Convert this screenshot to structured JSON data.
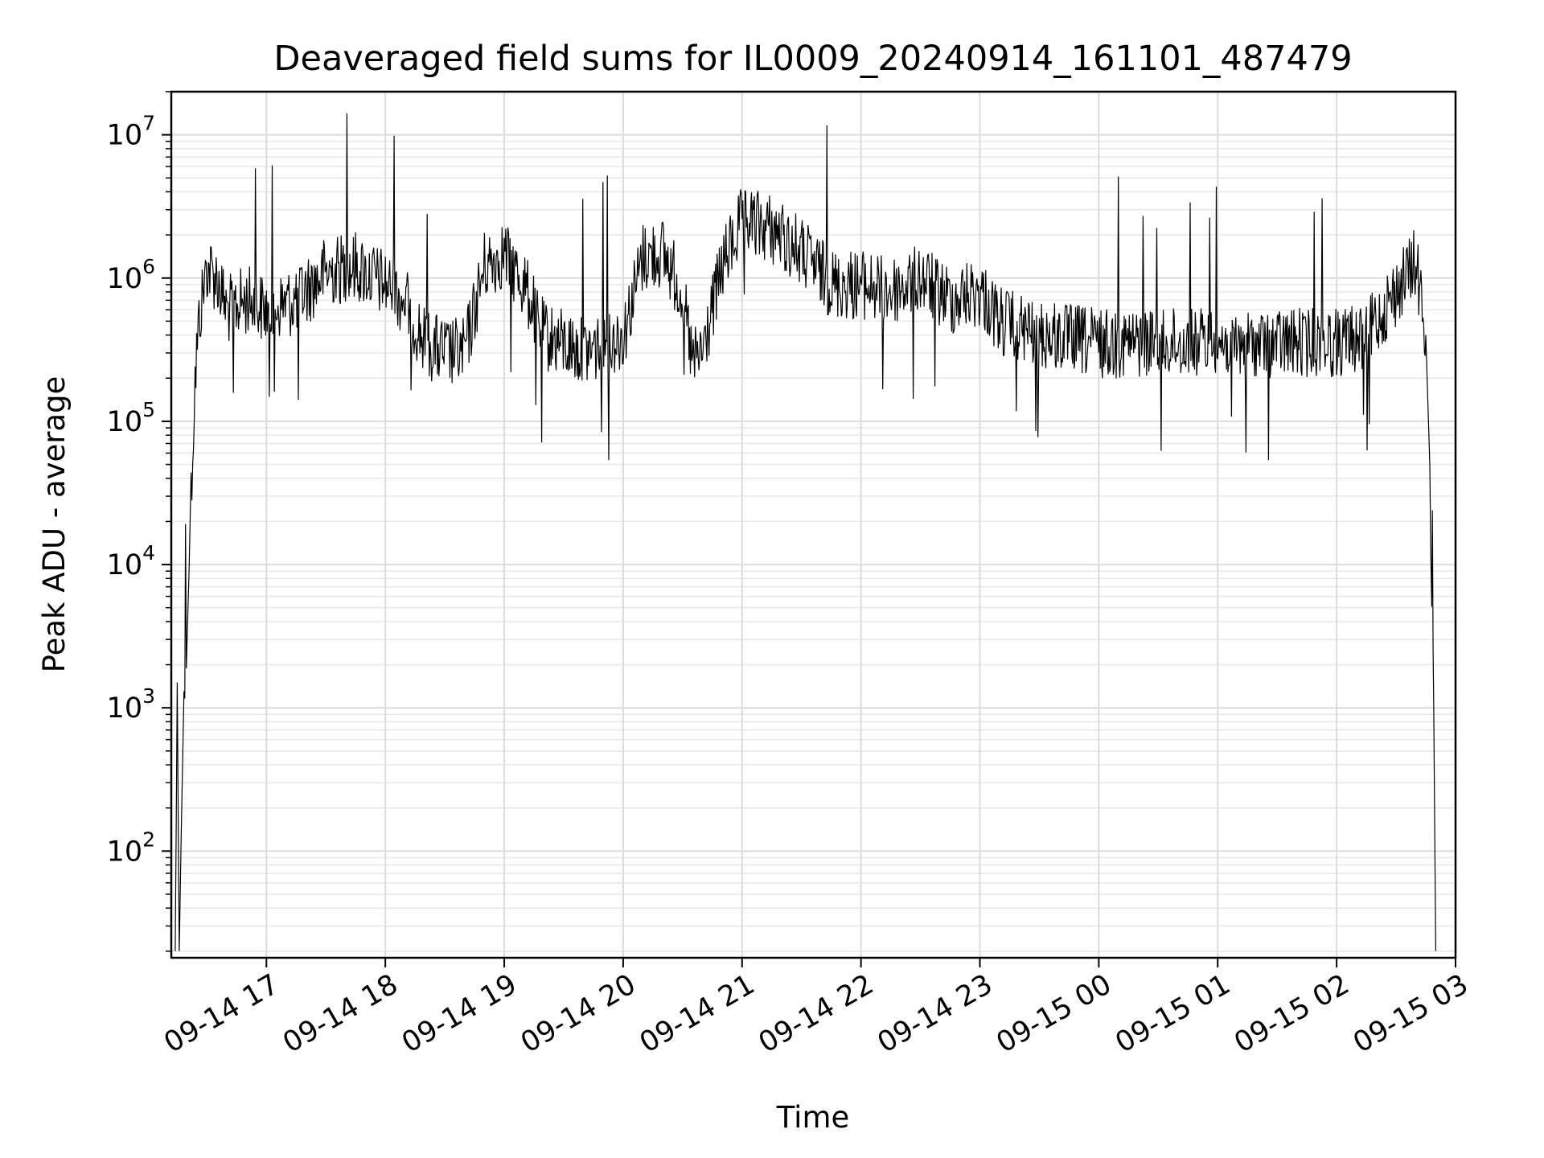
{
  "chart_data": {
    "type": "line",
    "title": "Deaveraged field sums for IL0009_20240914_161101_487479",
    "xlabel": "Time",
    "ylabel": "Peak ADU - average",
    "yscale": "log",
    "ylim": [
      18,
      20000000
    ],
    "xlim": [
      "2024-09-14 16:12",
      "2024-09-15 03:00"
    ],
    "grid": true,
    "x_ticks": [
      "09-14 17",
      "09-14 18",
      "09-14 19",
      "09-14 20",
      "09-14 21",
      "09-14 22",
      "09-14 23",
      "09-15 00",
      "09-15 01",
      "09-15 02",
      "09-15 03"
    ],
    "x_tick_times": [
      "2024-09-14 17:00",
      "2024-09-14 18:00",
      "2024-09-14 19:00",
      "2024-09-14 20:00",
      "2024-09-14 21:00",
      "2024-09-14 22:00",
      "2024-09-14 23:00",
      "2024-09-15 00:00",
      "2024-09-15 01:00",
      "2024-09-15 02:00",
      "2024-09-15 03:00"
    ],
    "y_ticks": [
      100,
      1000,
      10000,
      100000,
      1000000,
      10000000
    ],
    "y_tick_labels": [
      {
        "base": "10",
        "exp": "2"
      },
      {
        "base": "10",
        "exp": "3"
      },
      {
        "base": "10",
        "exp": "4"
      },
      {
        "base": "10",
        "exp": "5"
      },
      {
        "base": "10",
        "exp": "6"
      },
      {
        "base": "10",
        "exp": "7"
      }
    ],
    "series": [
      {
        "color": "#000000",
        "points": [
          [
            "2024-09-14 16:14",
            20
          ],
          [
            "2024-09-14 16:15",
            1500
          ],
          [
            "2024-09-14 16:16",
            20
          ],
          [
            "2024-09-14 16:18",
            800
          ],
          [
            "2024-09-14 16:20",
            3000
          ],
          [
            "2024-09-14 16:22",
            30000
          ],
          [
            "2024-09-14 16:24",
            200000
          ],
          [
            "2024-09-14 16:26",
            500000
          ],
          [
            "2024-09-14 16:28",
            800000
          ],
          [
            "2024-09-14 16:30",
            1200000
          ],
          [
            "2024-09-14 16:35",
            1000000
          ],
          [
            "2024-09-14 16:40",
            600000
          ],
          [
            "2024-09-14 16:50",
            700000
          ],
          [
            "2024-09-14 17:00",
            600000
          ],
          [
            "2024-09-14 17:15",
            700000
          ],
          [
            "2024-09-14 17:30",
            1100000
          ],
          [
            "2024-09-14 17:45",
            1200000
          ],
          [
            "2024-09-14 18:00",
            900000
          ],
          [
            "2024-09-14 18:10",
            700000
          ],
          [
            "2024-09-14 18:20",
            350000
          ],
          [
            "2024-09-14 18:30",
            300000
          ],
          [
            "2024-09-14 18:40",
            300000
          ],
          [
            "2024-09-14 18:50",
            1200000
          ],
          [
            "2024-09-14 19:00",
            1500000
          ],
          [
            "2024-09-14 19:10",
            900000
          ],
          [
            "2024-09-14 19:20",
            400000
          ],
          [
            "2024-09-14 19:40",
            300000
          ],
          [
            "2024-09-14 20:00",
            400000
          ],
          [
            "2024-09-14 20:10",
            1400000
          ],
          [
            "2024-09-14 20:20",
            1500000
          ],
          [
            "2024-09-14 20:30",
            800000
          ],
          [
            "2024-09-14 20:35",
            250000
          ],
          [
            "2024-09-14 20:40",
            300000
          ],
          [
            "2024-09-14 20:50",
            1200000
          ],
          [
            "2024-09-14 21:00",
            2500000
          ],
          [
            "2024-09-14 21:15",
            2200000
          ],
          [
            "2024-09-14 21:30",
            1500000
          ],
          [
            "2024-09-14 21:45",
            900000
          ],
          [
            "2024-09-14 22:00",
            900000
          ],
          [
            "2024-09-14 22:15",
            800000
          ],
          [
            "2024-09-14 22:30",
            1000000
          ],
          [
            "2024-09-14 22:45",
            700000
          ],
          [
            "2024-09-14 23:00",
            800000
          ],
          [
            "2024-09-14 23:10",
            500000
          ],
          [
            "2024-09-14 23:30",
            400000
          ],
          [
            "2024-09-15 00:00",
            350000
          ],
          [
            "2024-09-15 00:30",
            350000
          ],
          [
            "2024-09-15 01:00",
            350000
          ],
          [
            "2024-09-15 01:30",
            350000
          ],
          [
            "2024-09-15 02:00",
            350000
          ],
          [
            "2024-09-15 02:15",
            400000
          ],
          [
            "2024-09-15 02:30",
            800000
          ],
          [
            "2024-09-15 02:40",
            1300000
          ],
          [
            "2024-09-15 02:45",
            400000
          ],
          [
            "2024-09-15 02:47",
            50000
          ],
          [
            "2024-09-15 02:48",
            3000
          ],
          [
            "2024-09-15 02:49",
            1000
          ],
          [
            "2024-09-15 02:50",
            20
          ]
        ]
      }
    ]
  }
}
